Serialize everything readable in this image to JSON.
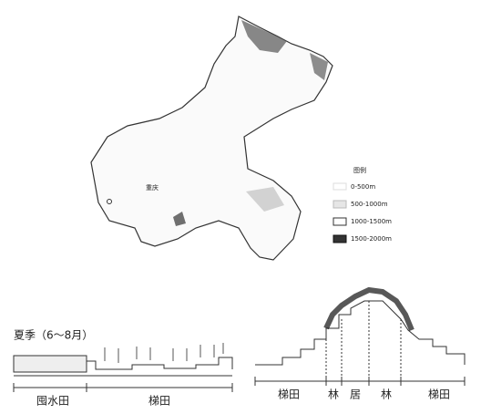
{
  "map": {
    "label": "重庆",
    "legend": {
      "title": "图例",
      "items": [
        "0-500m",
        "500-1000m",
        "1000-1500m",
        "1500-2000m"
      ]
    }
  },
  "left_profile": {
    "season": "夏季（6～8月）",
    "zones": [
      "囤水田",
      "梯田"
    ]
  },
  "right_profile": {
    "zones": [
      "梯田",
      "林",
      "居",
      "林",
      "梯田"
    ]
  }
}
